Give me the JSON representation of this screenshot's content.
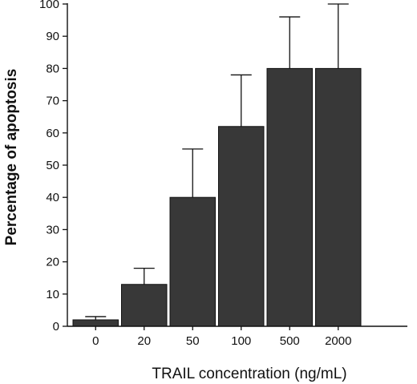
{
  "chart_data": {
    "type": "bar",
    "categories": [
      "0",
      "20",
      "50",
      "100",
      "500",
      "2000"
    ],
    "values": [
      2,
      13,
      40,
      62,
      80,
      80
    ],
    "error_upper": [
      3,
      18,
      55,
      78,
      96,
      100
    ],
    "title": "",
    "xlabel": "TRAIL concentration (ng/mL)",
    "ylabel": "Percentage of apoptosis",
    "ylim": [
      0,
      100
    ],
    "yticks": [
      0,
      10,
      20,
      30,
      40,
      50,
      60,
      70,
      80,
      90,
      100
    ],
    "ytick_labels": [
      "0",
      "10",
      "20",
      "30",
      "40",
      "50",
      "60",
      "70",
      "80",
      "90",
      "100"
    ],
    "grid": false,
    "legend": "none",
    "colors": {
      "bar": "#383838",
      "axis": "#111111"
    }
  }
}
